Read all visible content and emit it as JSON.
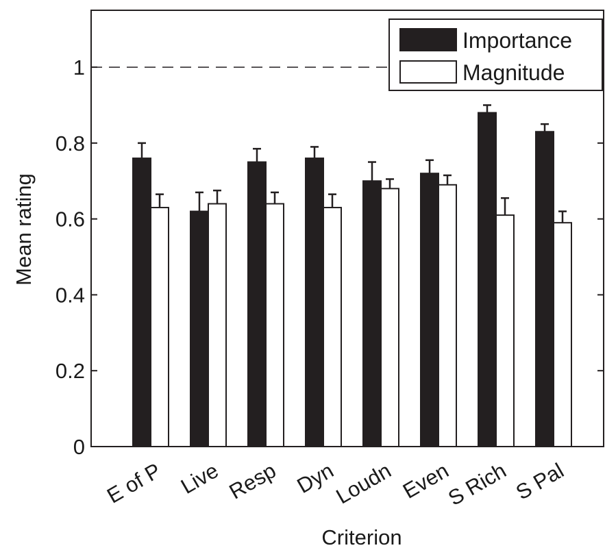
{
  "chart_data": {
    "type": "bar",
    "xlabel": "Criterion",
    "ylabel": "Mean rating",
    "ylim": [
      0,
      1.15
    ],
    "yticks": [
      0,
      0.2,
      0.4,
      0.6,
      0.8,
      1
    ],
    "ytick_labels": [
      "0",
      "0.2",
      "0.4",
      "0.6",
      "0.8",
      "1"
    ],
    "reference_line": {
      "y": 1,
      "style": "dashed"
    },
    "categories": [
      "E of P",
      "Live",
      "Resp",
      "Dyn",
      "Loudn",
      "Even",
      "S Rich",
      "S Pal"
    ],
    "series": [
      {
        "name": "Importance",
        "color": "#231f20",
        "values": [
          0.76,
          0.62,
          0.75,
          0.76,
          0.7,
          0.72,
          0.88,
          0.83
        ],
        "errors": [
          0.04,
          0.05,
          0.035,
          0.03,
          0.05,
          0.035,
          0.02,
          0.02
        ]
      },
      {
        "name": "Magnitude",
        "color": "#ffffff",
        "values": [
          0.63,
          0.64,
          0.64,
          0.63,
          0.68,
          0.69,
          0.61,
          0.59
        ],
        "errors": [
          0.035,
          0.035,
          0.03,
          0.035,
          0.025,
          0.025,
          0.045,
          0.03
        ]
      }
    ],
    "legend_position": "top-right",
    "grid": false
  }
}
